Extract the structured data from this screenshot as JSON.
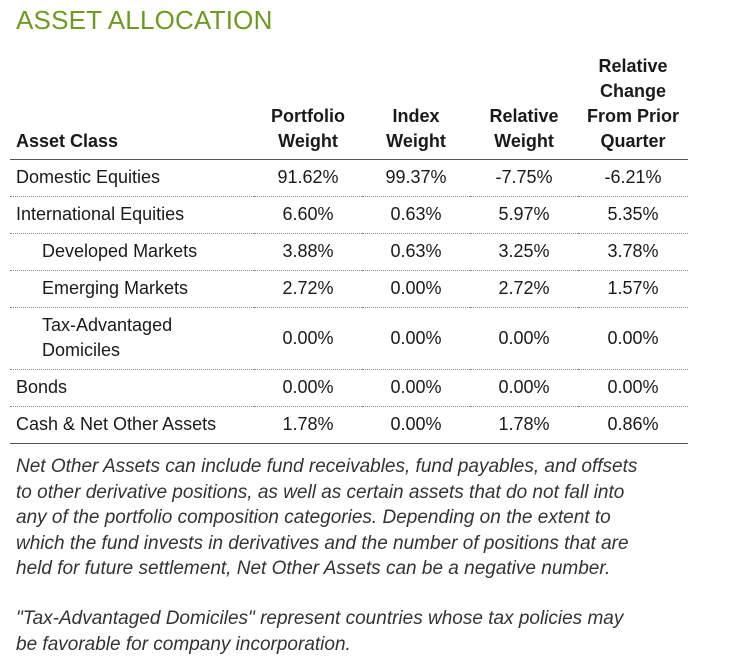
{
  "title": "ASSET ALLOCATION",
  "table": {
    "headers": {
      "asset_class": "Asset Class",
      "portfolio_weight": [
        "Portfolio",
        "Weight"
      ],
      "index_weight": [
        "Index",
        "Weight"
      ],
      "relative_weight": [
        "Relative",
        "Weight"
      ],
      "relative_change": [
        "Relative",
        "Change",
        "From Prior",
        "Quarter"
      ]
    },
    "rows": [
      {
        "label": [
          "Domestic Equities"
        ],
        "indent": false,
        "portfolio": "91.62%",
        "index": "99.37%",
        "relative": "-7.75%",
        "change": "-6.21%"
      },
      {
        "label": [
          "International Equities"
        ],
        "indent": false,
        "portfolio": "6.60%",
        "index": "0.63%",
        "relative": "5.97%",
        "change": "5.35%"
      },
      {
        "label": [
          "Developed Markets"
        ],
        "indent": true,
        "portfolio": "3.88%",
        "index": "0.63%",
        "relative": "3.25%",
        "change": "3.78%"
      },
      {
        "label": [
          "Emerging Markets"
        ],
        "indent": true,
        "portfolio": "2.72%",
        "index": "0.00%",
        "relative": "2.72%",
        "change": "1.57%"
      },
      {
        "label": [
          "Tax-Advantaged",
          "Domiciles"
        ],
        "indent": true,
        "portfolio": "0.00%",
        "index": "0.00%",
        "relative": "0.00%",
        "change": "0.00%"
      },
      {
        "label": [
          "Bonds"
        ],
        "indent": false,
        "portfolio": "0.00%",
        "index": "0.00%",
        "relative": "0.00%",
        "change": "0.00%"
      },
      {
        "label": [
          "Cash & Net Other Assets"
        ],
        "indent": false,
        "portfolio": "1.78%",
        "index": "0.00%",
        "relative": "1.78%",
        "change": "0.86%"
      }
    ]
  },
  "notes": {
    "net_other_assets": [
      "Net Other Assets can include fund receivables, fund payables, and offsets",
      "to other derivative positions, as well as certain assets that do not fall into",
      "any of the portfolio composition categories. Depending on the extent to",
      "which the fund invests in derivatives and the number of positions that are",
      "held for future settlement, Net Other Assets can be a negative number."
    ],
    "tax_advantaged": [
      "\"Tax-Advantaged Domiciles\" represent countries whose tax policies may",
      "be favorable for company incorporation."
    ]
  },
  "colors": {
    "title": "#6e9a1f",
    "text": "#1a1a1a",
    "note": "#333333",
    "rule": "#555555",
    "dotted": "#8c8c8c"
  }
}
